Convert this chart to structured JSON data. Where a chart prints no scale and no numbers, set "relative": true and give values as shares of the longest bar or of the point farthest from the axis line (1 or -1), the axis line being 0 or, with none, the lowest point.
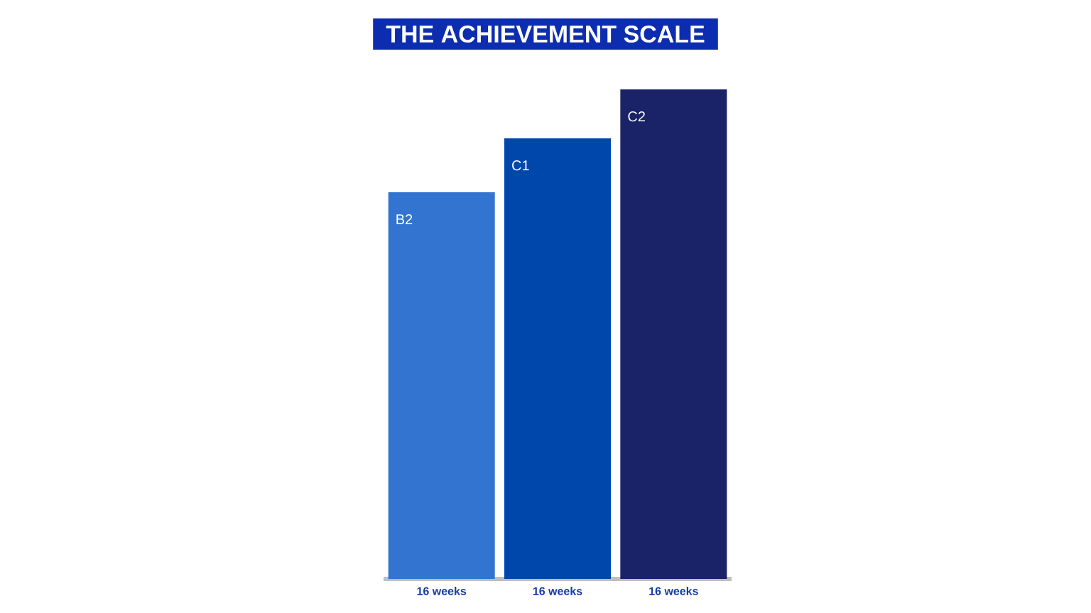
{
  "chart_data": {
    "type": "bar",
    "title": "THE ACHIEVEMENT SCALE",
    "relative": true,
    "categories": [
      "16 weeks",
      "16 weeks",
      "16 weeks"
    ],
    "values": [
      0.79,
      0.9,
      1
    ],
    "annotations": [
      "B2",
      "C1",
      "C2"
    ],
    "colors": [
      "#3374d0",
      "#0047ab",
      "#1a2368"
    ]
  }
}
